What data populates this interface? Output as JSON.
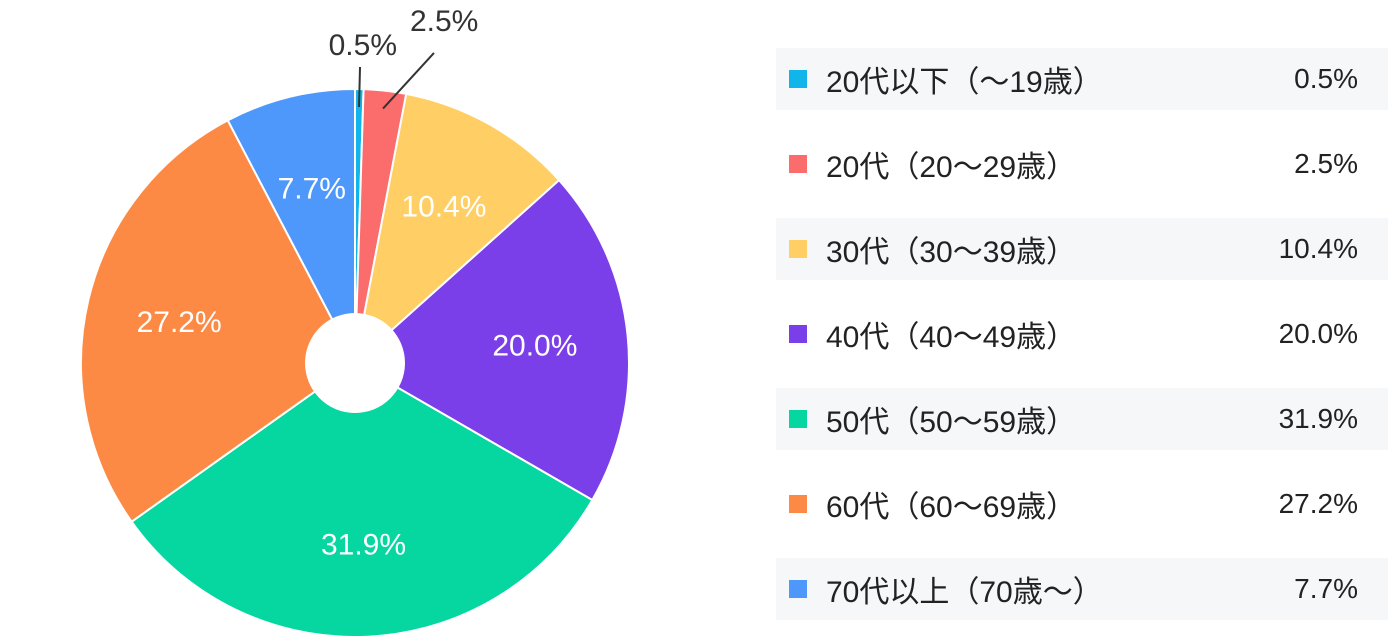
{
  "chart_data": {
    "type": "pie",
    "donut": true,
    "categories": [
      "20代以下（～19歳）",
      "20代（20～29歳）",
      "30代（30～39歳）",
      "40代（40～49歳）",
      "50代（50～59歳）",
      "60代（60～69歳）",
      "70代以上（70歳～）"
    ],
    "values": [
      0.5,
      2.5,
      10.4,
      20.0,
      31.9,
      27.2,
      7.7
    ],
    "labels": [
      "0.5%",
      "2.5%",
      "10.4%",
      "20.0%",
      "31.9%",
      "27.2%",
      "7.7%"
    ],
    "colors": [
      "#12b5ea",
      "#fb6c6c",
      "#ffcf66",
      "#7b3fea",
      "#06d6a0",
      "#fd8a44",
      "#4f98fb"
    ],
    "legend_position": "right",
    "start_angle_deg": 0
  }
}
